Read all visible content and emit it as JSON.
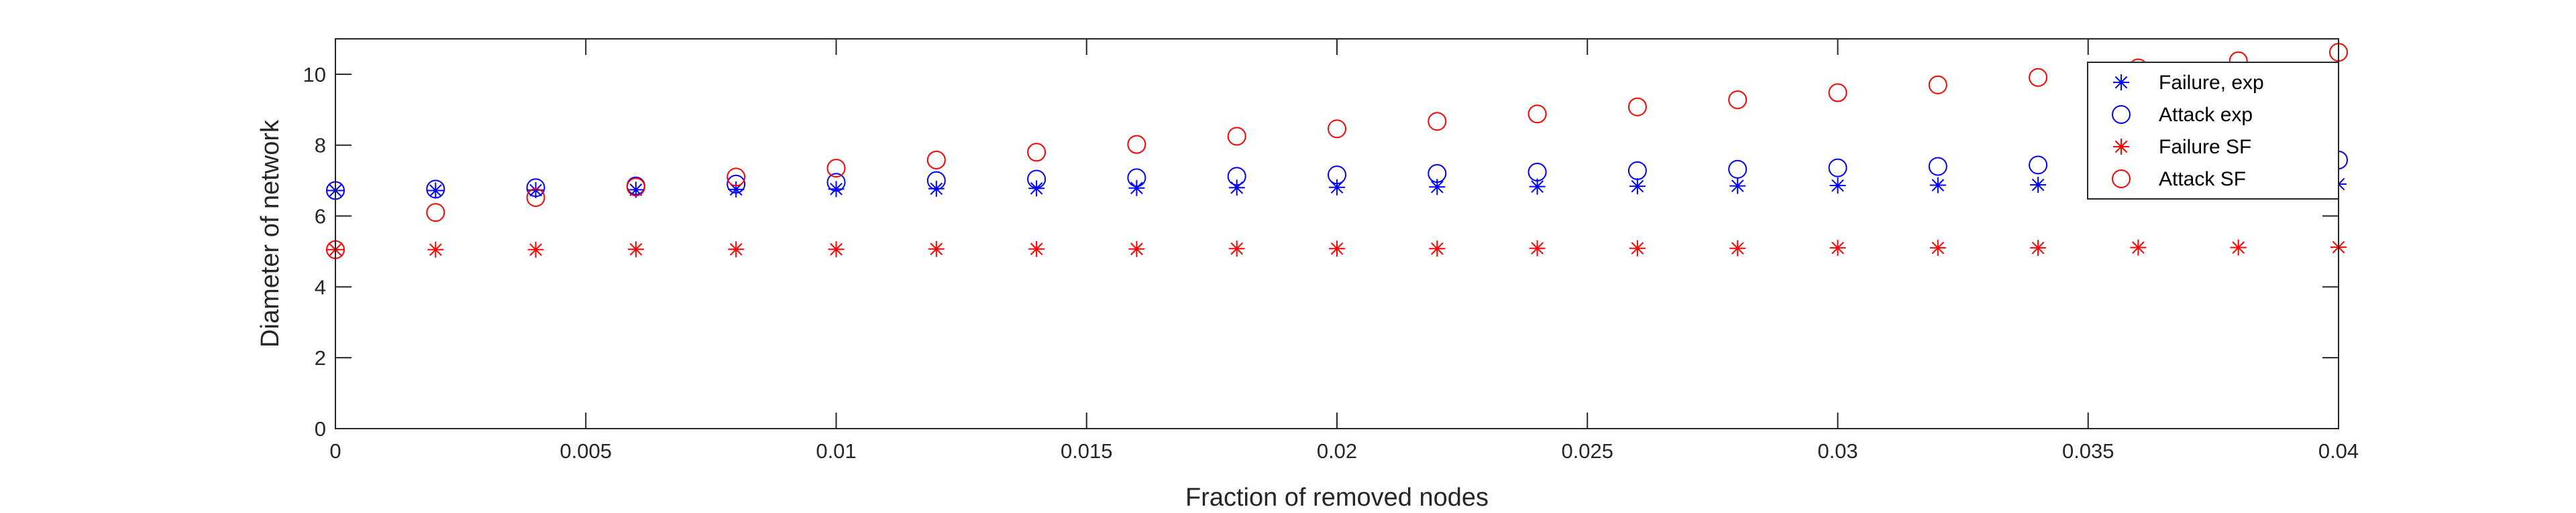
{
  "chart_data": {
    "type": "scatter",
    "xlabel": "Fraction of removed nodes",
    "ylabel": "Diameter of network",
    "xlim": [
      0,
      0.04
    ],
    "ylim": [
      0,
      11
    ],
    "xticks": [
      0,
      0.005,
      0.01,
      0.015,
      0.02,
      0.025,
      0.03,
      0.035,
      0.04
    ],
    "xtick_labels": [
      "0",
      "0.005",
      "0.01",
      "0.015",
      "0.02",
      "0.025",
      "0.03",
      "0.035",
      "0.04"
    ],
    "yticks": [
      0,
      2,
      4,
      6,
      8,
      10
    ],
    "ytick_labels": [
      "0",
      "2",
      "4",
      "6",
      "8",
      "10"
    ],
    "grid": false,
    "legend_position": "top-right",
    "x": [
      0,
      0.002,
      0.004,
      0.006,
      0.008,
      0.01,
      0.012,
      0.014,
      0.016,
      0.018,
      0.02,
      0.022,
      0.024,
      0.026,
      0.028,
      0.03,
      0.032,
      0.034,
      0.036,
      0.038,
      0.04
    ],
    "series": [
      {
        "name": "Failure, exp",
        "marker": "asterisk",
        "color": "#0000ff",
        "values": [
          6.72,
          6.72,
          6.73,
          6.74,
          6.75,
          6.76,
          6.77,
          6.78,
          6.79,
          6.8,
          6.81,
          6.82,
          6.83,
          6.84,
          6.85,
          6.86,
          6.87,
          6.88,
          null,
          null,
          6.9
        ]
      },
      {
        "name": "Attack exp",
        "marker": "circle",
        "color": "#0000ff",
        "values": [
          6.72,
          6.76,
          6.8,
          6.85,
          6.9,
          6.95,
          7.0,
          7.04,
          7.08,
          7.12,
          7.16,
          7.2,
          7.24,
          7.28,
          7.32,
          7.36,
          7.4,
          7.44,
          null,
          null,
          7.58
        ]
      },
      {
        "name": "Failure SF",
        "marker": "asterisk",
        "color": "#ff0000",
        "values": [
          5.05,
          5.05,
          5.05,
          5.06,
          5.06,
          5.06,
          5.07,
          5.07,
          5.07,
          5.08,
          5.08,
          5.08,
          5.09,
          5.09,
          5.09,
          5.1,
          5.1,
          5.1,
          5.11,
          5.11,
          5.12
        ]
      },
      {
        "name": "Attack SF",
        "marker": "circle",
        "color": "#ff0000",
        "values": [
          5.05,
          6.1,
          6.52,
          6.82,
          7.1,
          7.35,
          7.58,
          7.8,
          8.02,
          8.25,
          8.46,
          8.67,
          8.88,
          9.08,
          9.28,
          9.48,
          9.7,
          9.91,
          10.18,
          10.38,
          10.62
        ]
      }
    ]
  }
}
